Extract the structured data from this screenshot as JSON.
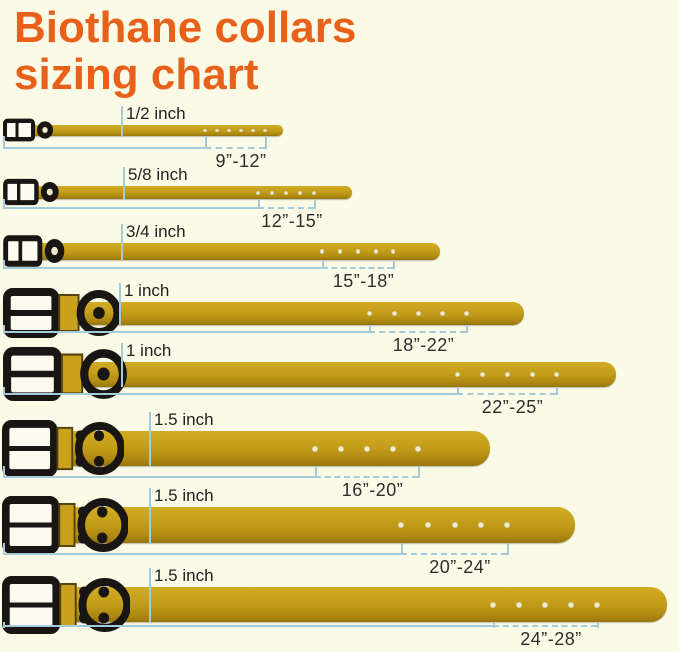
{
  "title": {
    "line1": "Biothane collars",
    "line2": "sizing chart"
  },
  "colors": {
    "background": "#fbfae6",
    "title_text": "#e8611a",
    "strap_gold": "#c49e1a",
    "strap_shadow": "#97760c",
    "buckle_black": "#181512",
    "measure_line_blue": "#a3cbd9",
    "label_text": "#222222"
  },
  "rows": [
    {
      "width_label": "1/2 inch",
      "range_label": "9”-12”",
      "holes": 6
    },
    {
      "width_label": "5/8 inch",
      "range_label": "12”-15”",
      "holes": 5
    },
    {
      "width_label": "3/4 inch",
      "range_label": "15”-18”",
      "holes": 5
    },
    {
      "width_label": "1 inch",
      "range_label": "18”-22”",
      "holes": 5
    },
    {
      "width_label": "1 inch",
      "range_label": "22”-25”",
      "holes": 5
    },
    {
      "width_label": "1.5 inch",
      "range_label": "16”-20”",
      "holes": 5
    },
    {
      "width_label": "1.5 inch",
      "range_label": "20”-24”",
      "holes": 5
    },
    {
      "width_label": "1.5 inch",
      "range_label": "24”-28”",
      "holes": 5
    }
  ]
}
